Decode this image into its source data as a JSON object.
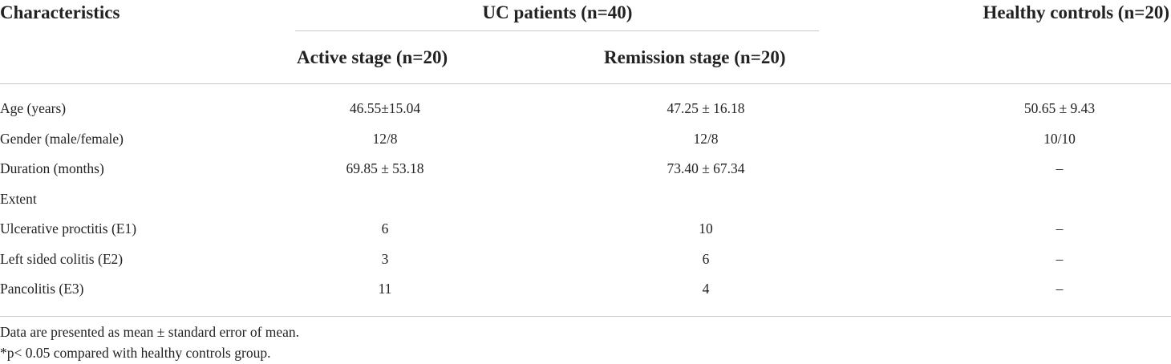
{
  "table": {
    "header": {
      "characteristics": "Characteristics",
      "uc_patients": "UC patients (n=40)",
      "healthy_controls": "Healthy controls (n=20)",
      "active_stage": "Active stage (n=20)",
      "remission_stage": "Remission stage (n=20)"
    },
    "rows": [
      [
        "Age (years)",
        "46.55±15.04",
        "47.25 ± 16.18",
        "50.65 ± 9.43"
      ],
      [
        "Gender (male/female)",
        "12/8",
        "12/8",
        "10/10"
      ],
      [
        "Duration (months)",
        "69.85 ± 53.18",
        "73.40 ± 67.34",
        "–"
      ],
      [
        "Extent"
      ],
      [
        "Ulcerative proctitis (E1)",
        "6",
        "10",
        "–"
      ],
      [
        "Left sided colitis (E2)",
        "3",
        "6",
        "–"
      ],
      [
        "Pancolitis (E3)",
        "11",
        "4",
        "–"
      ]
    ],
    "footnotes": [
      "Data are presented as mean ± standard error of mean.",
      "*p< 0.05 compared with healthy controls group."
    ]
  }
}
